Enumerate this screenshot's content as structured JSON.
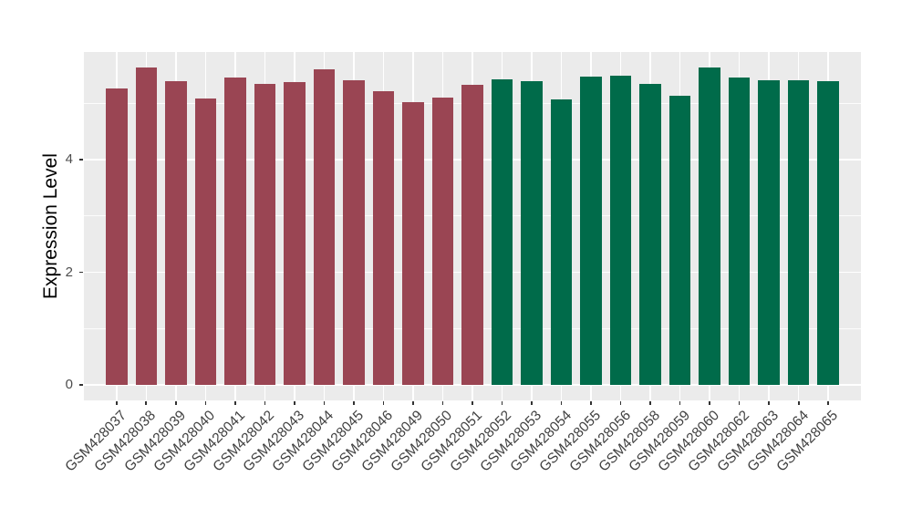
{
  "figure": {
    "background": "#FFFFFF",
    "panel_background": "#EBEBEB",
    "gridline_color": "#FFFFFF",
    "axis_text_color": "#4D4D4D",
    "axis_title_color": "#000000",
    "group_colors": {
      "left_group": "#9A4553",
      "right_group": "#006B4A"
    }
  },
  "chart_data": {
    "type": "bar",
    "title": "",
    "xlabel": "",
    "ylabel": "Expression Level",
    "legend": "none",
    "grid": "on",
    "ylim": [
      -0.28,
      5.92
    ],
    "y_tick_values": [
      0,
      2,
      4
    ],
    "y_tick_labels": [
      "0",
      "2",
      "4"
    ],
    "y_minor_values": [
      1,
      3,
      5
    ],
    "categories": [
      "GSM428037",
      "GSM428038",
      "GSM428039",
      "GSM428040",
      "GSM428041",
      "GSM428042",
      "GSM428043",
      "GSM428044",
      "GSM428045",
      "GSM428046",
      "GSM428049",
      "GSM428050",
      "GSM428051",
      "GSM428052",
      "GSM428053",
      "GSM428054",
      "GSM428055",
      "GSM428056",
      "GSM428058",
      "GSM428059",
      "GSM428060",
      "GSM428062",
      "GSM428063",
      "GSM428064",
      "GSM428065"
    ],
    "values": [
      5.26,
      5.64,
      5.4,
      5.08,
      5.45,
      5.34,
      5.38,
      5.61,
      5.41,
      5.22,
      5.02,
      5.1,
      5.32,
      5.43,
      5.4,
      5.07,
      5.48,
      5.49,
      5.34,
      5.13,
      5.64,
      5.45,
      5.41,
      5.41,
      5.39
    ],
    "bar_colors": [
      "#9A4553",
      "#9A4553",
      "#9A4553",
      "#9A4553",
      "#9A4553",
      "#9A4553",
      "#9A4553",
      "#9A4553",
      "#9A4553",
      "#9A4553",
      "#9A4553",
      "#9A4553",
      "#9A4553",
      "#006B4A",
      "#006B4A",
      "#006B4A",
      "#006B4A",
      "#006B4A",
      "#006B4A",
      "#006B4A",
      "#006B4A",
      "#006B4A",
      "#006B4A",
      "#006B4A",
      "#006B4A"
    ]
  }
}
